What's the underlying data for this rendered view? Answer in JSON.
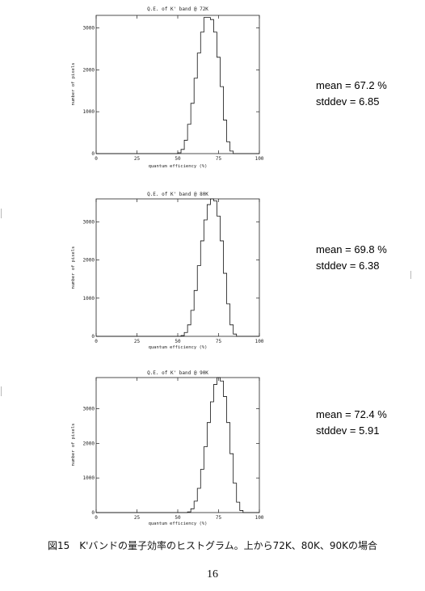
{
  "chart_data": [
    {
      "type": "histogram",
      "title": "Q.E. of K' band @ 72K",
      "xlabel": "quantum efficiency (%)",
      "ylabel": "number of pixels",
      "xlim": [
        0,
        100
      ],
      "ylim": [
        0,
        3300
      ],
      "xticks": [
        0,
        25,
        50,
        75,
        100
      ],
      "yticks": [
        0,
        1000,
        2000,
        3000
      ],
      "x": [
        50,
        52,
        54,
        56,
        58,
        60,
        62,
        64,
        66,
        68,
        70,
        72,
        74,
        76,
        78,
        80,
        82
      ],
      "y": [
        20,
        100,
        320,
        700,
        1200,
        1800,
        2400,
        2900,
        3250,
        3250,
        3200,
        2900,
        2300,
        1600,
        800,
        280,
        60
      ],
      "stats": {
        "mean": "mean = 67.2 %",
        "stddev": "stddev = 6.85"
      }
    },
    {
      "type": "histogram",
      "title": "Q.E. of K' band @ 80K",
      "xlabel": "quantum efficiency (%)",
      "ylabel": "number of pixels",
      "xlim": [
        0,
        100
      ],
      "ylim": [
        0,
        3600
      ],
      "xticks": [
        0,
        25,
        50,
        75,
        100
      ],
      "yticks": [
        0,
        1000,
        2000,
        3000
      ],
      "x": [
        52,
        54,
        56,
        58,
        60,
        62,
        64,
        66,
        68,
        70,
        72,
        74,
        76,
        78,
        80,
        82,
        84
      ],
      "y": [
        20,
        100,
        300,
        680,
        1200,
        1850,
        2500,
        3050,
        3450,
        3600,
        3550,
        3150,
        2500,
        1650,
        850,
        300,
        60
      ],
      "stats": {
        "mean": "mean = 69.8 %",
        "stddev": "stddev = 6.38"
      }
    },
    {
      "type": "histogram",
      "title": "Q.E. of K' band @ 90K",
      "xlabel": "quantum efficiency (%)",
      "ylabel": "number of pixels",
      "xlim": [
        0,
        100
      ],
      "ylim": [
        0,
        3900
      ],
      "xticks": [
        0,
        25,
        50,
        75,
        100
      ],
      "yticks": [
        0,
        1000,
        2000,
        3000
      ],
      "x": [
        56,
        58,
        60,
        62,
        64,
        66,
        68,
        70,
        72,
        74,
        76,
        78,
        80,
        82,
        84,
        86,
        88
      ],
      "y": [
        20,
        110,
        330,
        700,
        1250,
        1900,
        2600,
        3200,
        3700,
        3900,
        3800,
        3350,
        2600,
        1700,
        850,
        300,
        60
      ],
      "stats": {
        "mean": "mean = 72.4 %",
        "stddev": "stddev = 5.91"
      }
    }
  ],
  "caption": "図15　K'バンドの量子効率のヒストグラム。上から72K、80K、90Kの場合",
  "page_number": "16"
}
